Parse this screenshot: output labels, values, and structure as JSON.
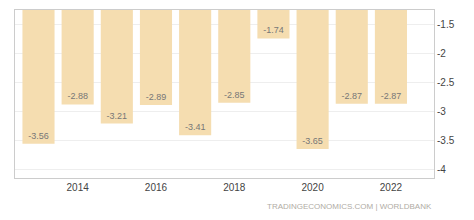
{
  "chart_data": {
    "type": "bar",
    "x": [
      2013,
      2014,
      2015,
      2016,
      2017,
      2018,
      2019,
      2020,
      2021,
      2022
    ],
    "values": [
      -3.56,
      -2.88,
      -3.21,
      -2.89,
      -3.41,
      -2.85,
      -1.74,
      -3.65,
      -2.87,
      -2.87
    ],
    "color": "#f5ddb0",
    "xlim": [
      2012.4,
      2023.1
    ],
    "xticks": [
      2014,
      2016,
      2018,
      2020,
      2022
    ],
    "ylim": [
      -4.15,
      -1.25
    ],
    "yticks": [
      -1.5,
      -2,
      -2.5,
      -3,
      -3.5,
      -4
    ],
    "grid": true,
    "data_labels": true,
    "annotations": [
      "TRADINGECONOMICS.COM | WORLDBANK"
    ]
  }
}
